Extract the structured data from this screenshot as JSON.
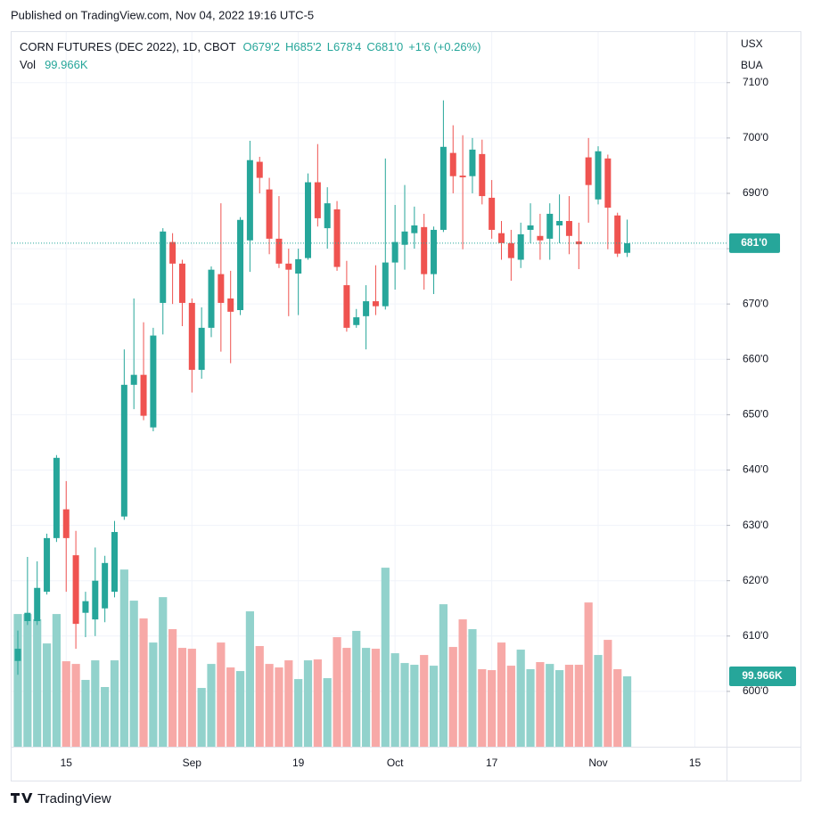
{
  "published": "Published on TradingView.com, Nov 04, 2022 19:16 UTC-5",
  "brand": "TradingView",
  "chart_data": {
    "type": "candlestick",
    "title": "CORN FUTURES (DEC 2022), 1D, CBOT",
    "legend": {
      "open": "O679'2",
      "high": "H685'2",
      "low": "L678'4",
      "close": "C681'0",
      "change": "+1'6 (+0.26%)"
    },
    "currency": "USX",
    "unit": "BUA",
    "up_color": "#26a69a",
    "down_color": "#ef5350",
    "volume_up_color": "#92d2cc",
    "volume_down_color": "#f7a9a7",
    "grid": true,
    "x": [
      "Aug 8",
      "Aug 9",
      "Aug 10",
      "Aug 11",
      "Aug 12",
      "Aug 15",
      "Aug 16",
      "Aug 17",
      "Aug 18",
      "Aug 19",
      "Aug 22",
      "Aug 23",
      "Aug 24",
      "Aug 25",
      "Aug 26",
      "Aug 29",
      "Aug 30",
      "Aug 31",
      "Sep 1",
      "Sep 2",
      "Sep 6",
      "Sep 7",
      "Sep 8",
      "Sep 9",
      "Sep 12",
      "Sep 13",
      "Sep 14",
      "Sep 15",
      "Sep 16",
      "Sep 19",
      "Sep 20",
      "Sep 21",
      "Sep 22",
      "Sep 23",
      "Sep 26",
      "Sep 27",
      "Sep 28",
      "Sep 29",
      "Sep 30",
      "Oct 3",
      "Oct 4",
      "Oct 5",
      "Oct 6",
      "Oct 7",
      "Oct 10",
      "Oct 11",
      "Oct 12",
      "Oct 13",
      "Oct 14",
      "Oct 17",
      "Oct 18",
      "Oct 19",
      "Oct 20",
      "Oct 21",
      "Oct 24",
      "Oct 25",
      "Oct 26",
      "Oct 27",
      "Oct 28",
      "Oct 31",
      "Nov 1",
      "Nov 2",
      "Nov 3",
      "Nov 4"
    ],
    "open": [
      605.5,
      612.7,
      612.7,
      618,
      627.7,
      632.9,
      624.6,
      614.2,
      613,
      615,
      618,
      631.6,
      655.4,
      657.2,
      647.7,
      670.2,
      681.2,
      677.3,
      670.2,
      658.1,
      665.7,
      675.4,
      671,
      668.9,
      681.5,
      695.7,
      690.7,
      681.8,
      677.3,
      675.5,
      678.3,
      692,
      683.7,
      687.1,
      673.4,
      666.2,
      667.8,
      670.5,
      669.6,
      677.5,
      680.7,
      682.8,
      683.9,
      675.4,
      683.4,
      697.3,
      693.2,
      693.1,
      697.1,
      689.2,
      682.8,
      681,
      678,
      683.4,
      682.3,
      681.8,
      684.2,
      685,
      681.3,
      696.5,
      688.9,
      696.3,
      686,
      679.25
    ],
    "high": [
      611,
      624.3,
      623.5,
      628.5,
      642.7,
      638,
      629,
      618,
      626,
      624.5,
      630.8,
      661.8,
      671,
      666.7,
      665.7,
      683.7,
      682.8,
      678,
      671,
      669.4,
      676.8,
      688.2,
      676,
      685.7,
      699.5,
      696.6,
      692.8,
      689.5,
      680,
      680,
      693.6,
      698.9,
      691.1,
      688.6,
      677.8,
      669.1,
      673.4,
      677,
      696.3,
      687.9,
      691.5,
      687.6,
      686.3,
      684,
      706.8,
      702.3,
      700.5,
      700,
      699.7,
      692.4,
      685,
      683.4,
      684.7,
      688.2,
      686.3,
      688.2,
      689.8,
      689.5,
      684.7,
      700,
      698.5,
      697,
      686.5,
      685.25
    ],
    "low": [
      603,
      612,
      612,
      617.5,
      627,
      618,
      607.7,
      609.8,
      610,
      612.5,
      617,
      631,
      651,
      649,
      647,
      664.5,
      670,
      666,
      654,
      656.5,
      664,
      661.4,
      659.3,
      668,
      675.8,
      690,
      679,
      676.5,
      667.8,
      668,
      678,
      684,
      680,
      676,
      665,
      665.7,
      661.8,
      668,
      669,
      672.6,
      676.2,
      680,
      672.6,
      671.8,
      683,
      690,
      679.9,
      690,
      688,
      681.8,
      678,
      674.2,
      676.5,
      681,
      678,
      678,
      681,
      679,
      676.3,
      684.7,
      688,
      679.9,
      678.5,
      678.5
    ],
    "close": [
      607.7,
      614.2,
      618.7,
      627.7,
      642.2,
      627.7,
      612.2,
      616.3,
      620,
      623.2,
      628.8,
      655.4,
      657.2,
      649.8,
      664.3,
      683.1,
      677.3,
      670.2,
      658.1,
      665.7,
      676.2,
      670.2,
      668.6,
      685.2,
      696,
      692.8,
      681.8,
      677.3,
      676.2,
      678.1,
      692,
      685.5,
      688.2,
      676.7,
      665.7,
      667.6,
      670.5,
      669.6,
      677.5,
      681.2,
      683.1,
      684.2,
      675.4,
      683.4,
      698.4,
      693.1,
      692.9,
      697.9,
      689.5,
      683.4,
      681,
      678.3,
      682.6,
      684.2,
      681.5,
      686.3,
      685,
      682.3,
      680.8,
      691.5,
      697.6,
      687.4,
      679.1,
      681
    ],
    "ylim": [
      590,
      719.3
    ],
    "yticks": [
      {
        "value": 600,
        "label": "600'0"
      },
      {
        "value": 610,
        "label": "610'0"
      },
      {
        "value": 620,
        "label": "620'0"
      },
      {
        "value": 630,
        "label": "630'0"
      },
      {
        "value": 640,
        "label": "640'0"
      },
      {
        "value": 650,
        "label": "650'0"
      },
      {
        "value": 660,
        "label": "660'0"
      },
      {
        "value": 670,
        "label": "670'0"
      },
      {
        "value": 680,
        "label": "680'0"
      },
      {
        "value": 690,
        "label": "690'0"
      },
      {
        "value": 700,
        "label": "700'0"
      },
      {
        "value": 710,
        "label": "710'0"
      }
    ],
    "last_price_label": "681'0",
    "xticks": [
      {
        "value": "Aug 15",
        "label": "15"
      },
      {
        "value": "Sep 1",
        "label": "Sep"
      },
      {
        "value": "Sep 19",
        "label": "19"
      },
      {
        "value": "Oct 3",
        "label": "Oct"
      },
      {
        "value": "Oct 17",
        "label": "17"
      },
      {
        "value": "Nov 1",
        "label": "Nov"
      },
      {
        "value": "Nov 15",
        "label": "15"
      }
    ],
    "volume": {
      "name": "Vol",
      "values": [
        188500,
        188500,
        181000,
        146700,
        188500,
        121400,
        117600,
        94900,
        122700,
        84800,
        122700,
        251700,
        207500,
        182200,
        148000,
        212500,
        167000,
        140400,
        139200,
        83500,
        117600,
        148000,
        112600,
        107500,
        192300,
        143000,
        117600,
        112600,
        122700,
        96100,
        122700,
        124000,
        97400,
        155600,
        140400,
        164500,
        140400,
        139200,
        254300,
        132800,
        118900,
        116400,
        130300,
        115100,
        202400,
        141700,
        180900,
        167000,
        110100,
        108800,
        148000,
        115100,
        137900,
        110100,
        120200,
        117600,
        108800,
        116400,
        116400,
        204900,
        130300,
        151800,
        110100,
        99966
      ],
      "last_value_label": "99.966K",
      "y2lim": [
        0,
        400000
      ]
    }
  }
}
